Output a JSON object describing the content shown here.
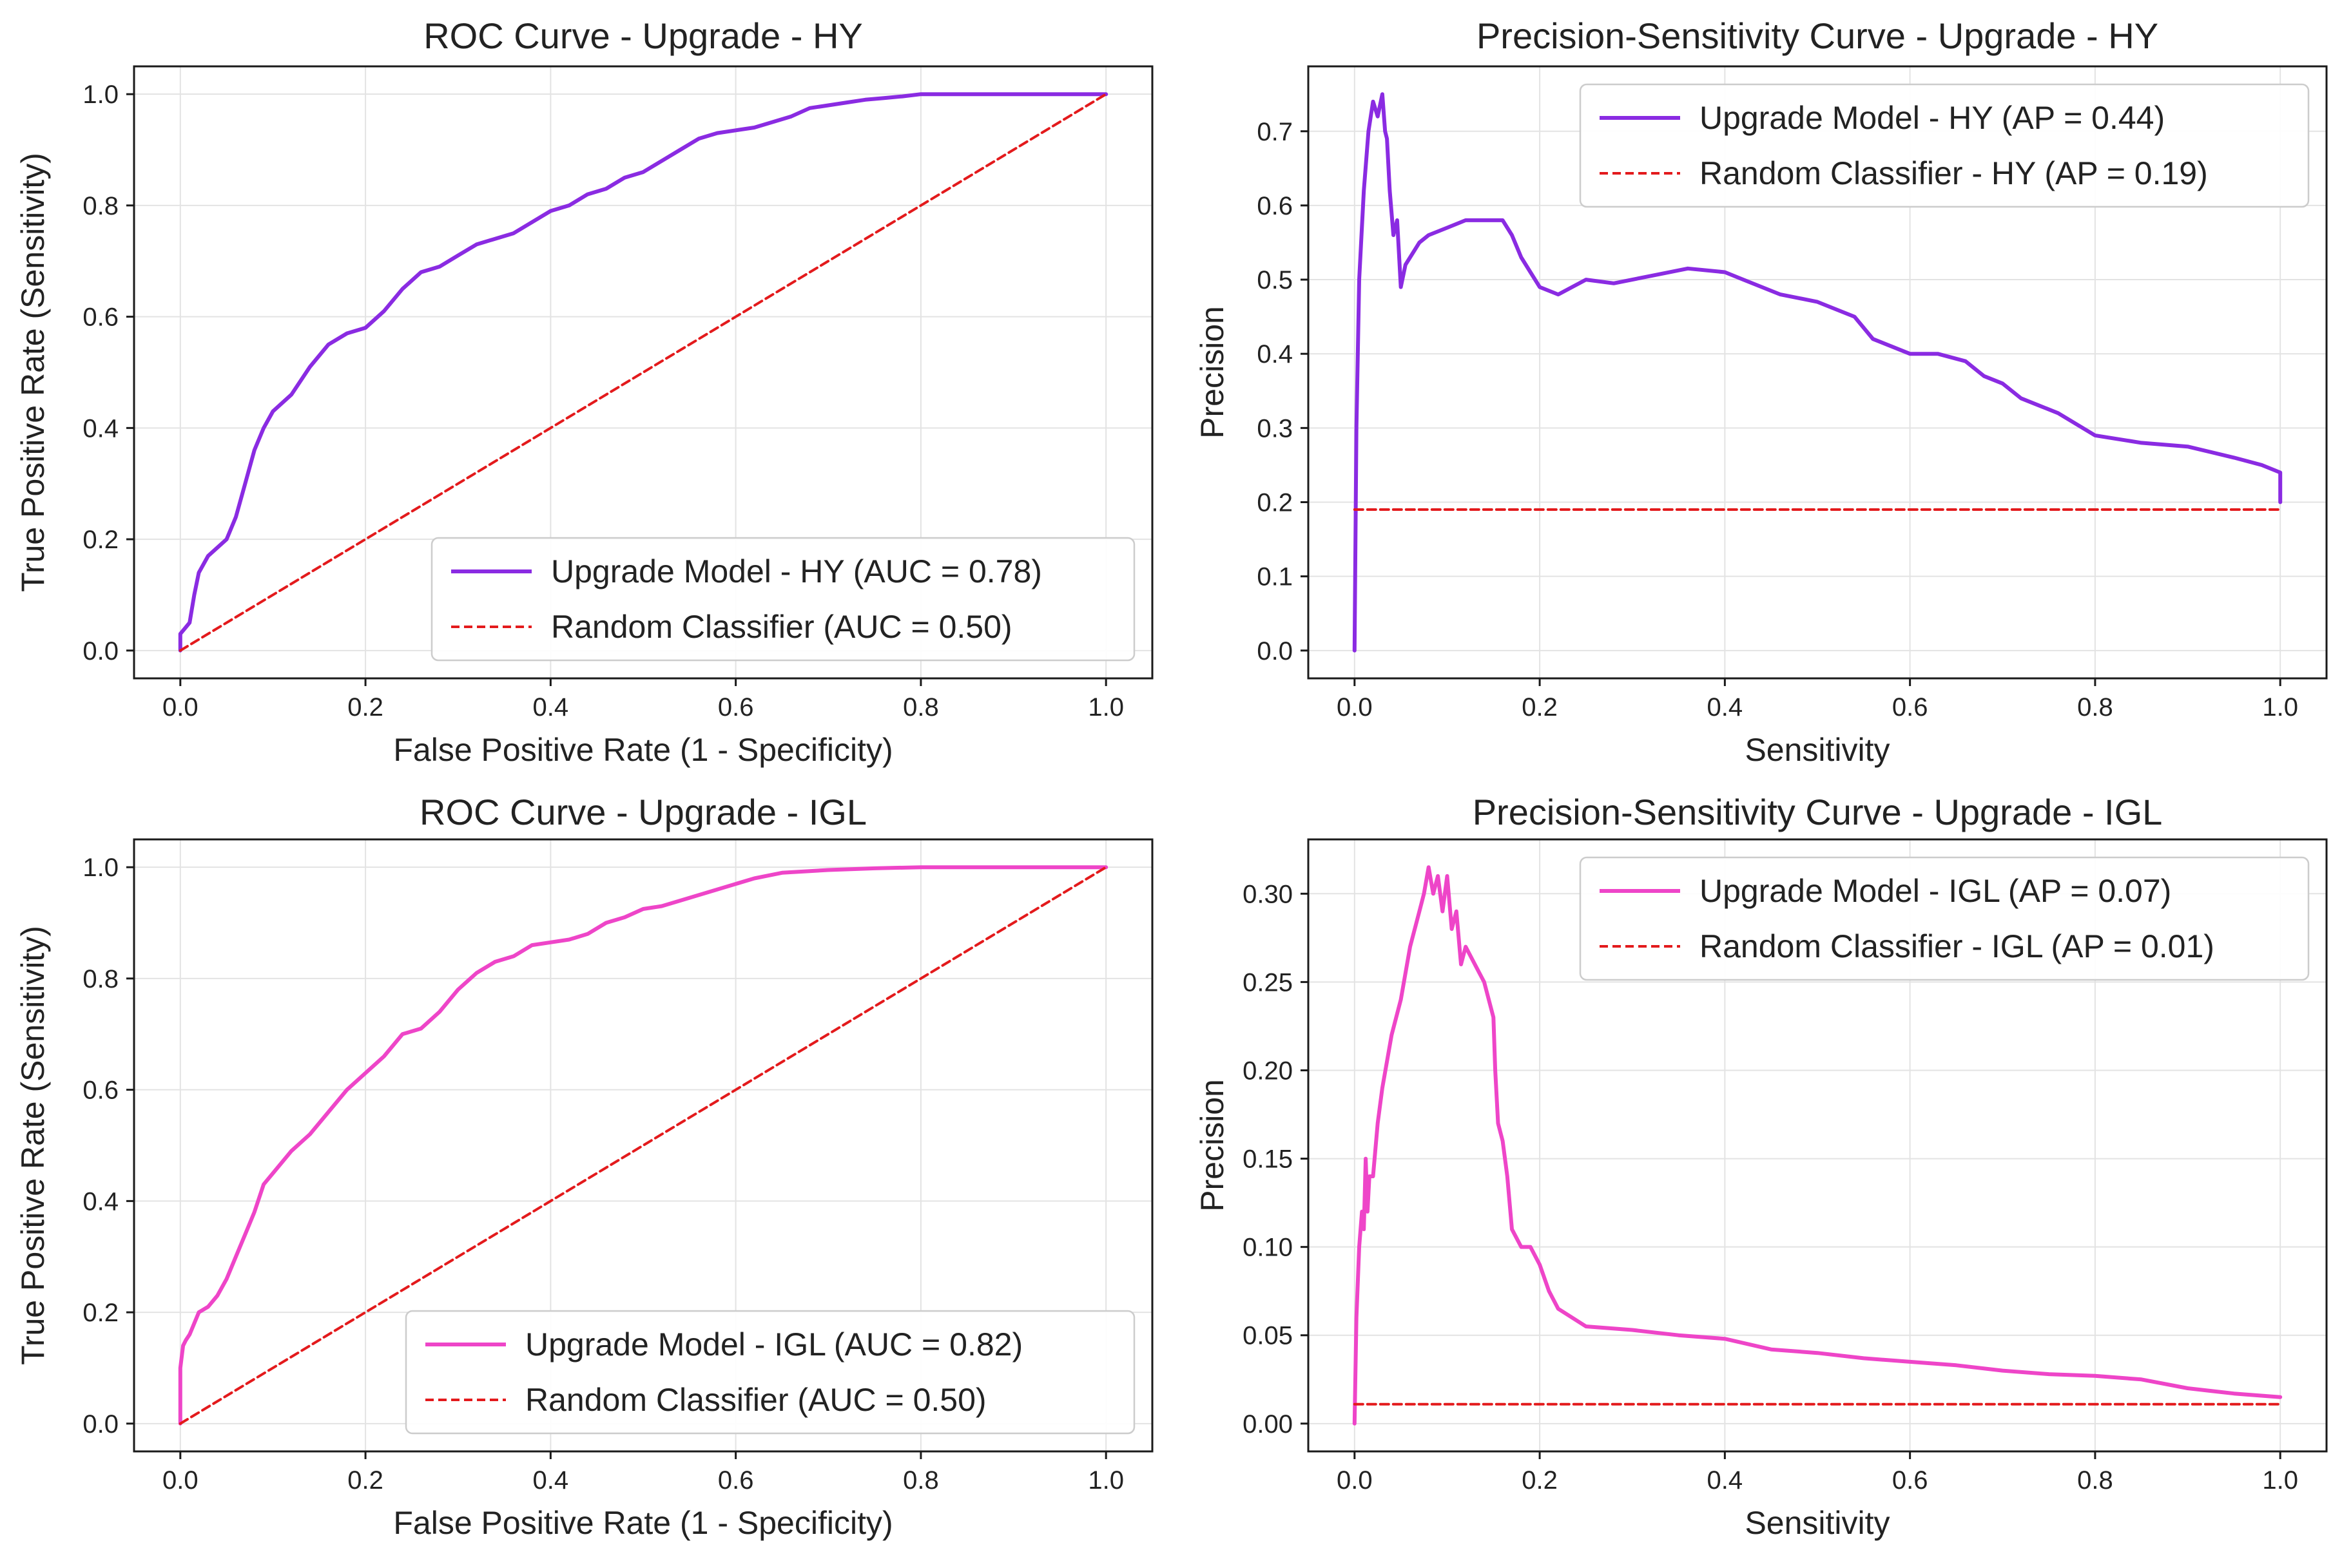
{
  "colors": {
    "hy": "#8a2be2",
    "igl": "#ee45c8",
    "random": "#e31a1c"
  },
  "chart_data": [
    {
      "type": "line",
      "title": "ROC Curve - Upgrade - HY",
      "xlabel": "False Positive Rate (1 - Specificity)",
      "ylabel": "True Positive Rate (Sensitivity)",
      "xlim": [
        -0.05,
        1.05
      ],
      "ylim": [
        -0.05,
        1.05
      ],
      "xticks": [
        "0.0",
        "0.2",
        "0.4",
        "0.6",
        "0.8",
        "1.0"
      ],
      "yticks": [
        "0.0",
        "0.2",
        "0.4",
        "0.6",
        "0.8",
        "1.0"
      ],
      "grid": true,
      "legend_position": "lower-right",
      "series": [
        {
          "name": "Upgrade Model - HY (AUC = 0.78)",
          "color_key": "hy",
          "style": "solid",
          "x": [
            0,
            0,
            0.005,
            0.01,
            0.015,
            0.02,
            0.03,
            0.05,
            0.06,
            0.07,
            0.08,
            0.09,
            0.1,
            0.12,
            0.14,
            0.16,
            0.18,
            0.2,
            0.22,
            0.24,
            0.26,
            0.28,
            0.3,
            0.32,
            0.34,
            0.36,
            0.38,
            0.4,
            0.42,
            0.44,
            0.46,
            0.48,
            0.5,
            0.52,
            0.54,
            0.56,
            0.58,
            0.6,
            0.62,
            0.64,
            0.66,
            0.68,
            0.7,
            0.72,
            0.74,
            0.76,
            0.78,
            0.8,
            0.85,
            0.9,
            0.95,
            1.0
          ],
          "y": [
            0,
            0.03,
            0.04,
            0.05,
            0.1,
            0.14,
            0.17,
            0.2,
            0.24,
            0.3,
            0.36,
            0.4,
            0.43,
            0.46,
            0.51,
            0.55,
            0.57,
            0.58,
            0.61,
            0.65,
            0.68,
            0.69,
            0.71,
            0.73,
            0.74,
            0.75,
            0.77,
            0.79,
            0.8,
            0.82,
            0.83,
            0.85,
            0.86,
            0.88,
            0.9,
            0.92,
            0.93,
            0.935,
            0.94,
            0.95,
            0.96,
            0.975,
            0.98,
            0.985,
            0.99,
            0.993,
            0.996,
            1.0,
            1.0,
            1.0,
            1.0,
            1.0
          ]
        },
        {
          "name": "Random Classifier (AUC = 0.50)",
          "color_key": "random",
          "style": "dashed",
          "x": [
            0,
            1
          ],
          "y": [
            0,
            1
          ]
        }
      ]
    },
    {
      "type": "line",
      "title": "Precision-Sensitivity Curve - Upgrade - HY",
      "xlabel": "Sensitivity",
      "ylabel": "Precision",
      "xlim": [
        -0.05,
        1.05
      ],
      "ylim": [
        -0.0375,
        0.7875
      ],
      "xticks": [
        "0.0",
        "0.2",
        "0.4",
        "0.6",
        "0.8",
        "1.0"
      ],
      "yticks": [
        "0.0",
        "0.1",
        "0.2",
        "0.3",
        "0.4",
        "0.5",
        "0.6",
        "0.7"
      ],
      "grid": true,
      "legend_position": "upper-right",
      "series": [
        {
          "name": "Upgrade Model - HY (AP = 0.44)",
          "color_key": "hy",
          "style": "solid",
          "x": [
            0,
            0.002,
            0.005,
            0.01,
            0.015,
            0.02,
            0.025,
            0.03,
            0.033,
            0.035,
            0.038,
            0.042,
            0.046,
            0.05,
            0.055,
            0.06,
            0.07,
            0.08,
            0.1,
            0.12,
            0.14,
            0.16,
            0.17,
            0.18,
            0.19,
            0.2,
            0.22,
            0.25,
            0.28,
            0.32,
            0.36,
            0.4,
            0.42,
            0.44,
            0.46,
            0.48,
            0.5,
            0.52,
            0.54,
            0.56,
            0.58,
            0.6,
            0.63,
            0.66,
            0.68,
            0.7,
            0.72,
            0.74,
            0.76,
            0.8,
            0.85,
            0.9,
            0.95,
            0.98,
            1.0,
            1.0
          ],
          "y": [
            0,
            0.3,
            0.5,
            0.62,
            0.7,
            0.74,
            0.72,
            0.75,
            0.7,
            0.69,
            0.62,
            0.56,
            0.58,
            0.49,
            0.52,
            0.53,
            0.55,
            0.56,
            0.57,
            0.58,
            0.58,
            0.58,
            0.56,
            0.53,
            0.51,
            0.49,
            0.48,
            0.5,
            0.495,
            0.505,
            0.515,
            0.51,
            0.5,
            0.49,
            0.48,
            0.475,
            0.47,
            0.46,
            0.45,
            0.42,
            0.41,
            0.4,
            0.4,
            0.39,
            0.37,
            0.36,
            0.34,
            0.33,
            0.32,
            0.29,
            0.28,
            0.275,
            0.26,
            0.25,
            0.24,
            0.2
          ]
        },
        {
          "name": "Random Classifier - HY (AP = 0.19)",
          "color_key": "random",
          "style": "dashed",
          "x": [
            0,
            1
          ],
          "y": [
            0.19,
            0.19
          ]
        }
      ]
    },
    {
      "type": "line",
      "title": "ROC Curve - Upgrade - IGL",
      "xlabel": "False Positive Rate (1 - Specificity)",
      "ylabel": "True Positive Rate (Sensitivity)",
      "xlim": [
        -0.05,
        1.05
      ],
      "ylim": [
        -0.05,
        1.05
      ],
      "xticks": [
        "0.0",
        "0.2",
        "0.4",
        "0.6",
        "0.8",
        "1.0"
      ],
      "yticks": [
        "0.0",
        "0.2",
        "0.4",
        "0.6",
        "0.8",
        "1.0"
      ],
      "grid": true,
      "legend_position": "lower-right",
      "series": [
        {
          "name": "Upgrade Model - IGL (AUC = 0.82)",
          "color_key": "igl",
          "style": "solid",
          "x": [
            0,
            0,
            0.003,
            0.006,
            0.01,
            0.02,
            0.03,
            0.04,
            0.05,
            0.06,
            0.07,
            0.08,
            0.09,
            0.1,
            0.12,
            0.14,
            0.16,
            0.18,
            0.2,
            0.22,
            0.24,
            0.26,
            0.28,
            0.3,
            0.32,
            0.34,
            0.36,
            0.38,
            0.4,
            0.42,
            0.44,
            0.46,
            0.48,
            0.5,
            0.52,
            0.54,
            0.56,
            0.58,
            0.6,
            0.62,
            0.65,
            0.7,
            0.75,
            0.8,
            0.9,
            1.0
          ],
          "y": [
            0,
            0.1,
            0.14,
            0.15,
            0.16,
            0.2,
            0.21,
            0.23,
            0.26,
            0.3,
            0.34,
            0.38,
            0.43,
            0.45,
            0.49,
            0.52,
            0.56,
            0.6,
            0.63,
            0.66,
            0.7,
            0.71,
            0.74,
            0.78,
            0.81,
            0.83,
            0.84,
            0.86,
            0.865,
            0.87,
            0.88,
            0.9,
            0.91,
            0.925,
            0.93,
            0.94,
            0.95,
            0.96,
            0.97,
            0.98,
            0.99,
            0.995,
            0.998,
            1.0,
            1.0,
            1.0
          ]
        },
        {
          "name": "Random Classifier (AUC = 0.50)",
          "color_key": "random",
          "style": "dashed",
          "x": [
            0,
            1
          ],
          "y": [
            0,
            1
          ]
        }
      ]
    },
    {
      "type": "line",
      "title": "Precision-Sensitivity Curve - Upgrade - IGL",
      "xlabel": "Sensitivity",
      "ylabel": "Precision",
      "xlim": [
        -0.05,
        1.05
      ],
      "ylim": [
        -0.01575,
        0.33075
      ],
      "xticks": [
        "0.0",
        "0.2",
        "0.4",
        "0.6",
        "0.8",
        "1.0"
      ],
      "yticks": [
        "0.00",
        "0.05",
        "0.10",
        "0.15",
        "0.20",
        "0.25",
        "0.30"
      ],
      "grid": true,
      "legend_position": "upper-right",
      "series": [
        {
          "name": "Upgrade Model - IGL (AP = 0.07)",
          "color_key": "igl",
          "style": "solid",
          "x": [
            0,
            0.002,
            0.005,
            0.008,
            0.01,
            0.012,
            0.014,
            0.016,
            0.02,
            0.025,
            0.03,
            0.04,
            0.05,
            0.06,
            0.07,
            0.075,
            0.08,
            0.085,
            0.09,
            0.095,
            0.1,
            0.105,
            0.11,
            0.115,
            0.12,
            0.13,
            0.14,
            0.15,
            0.152,
            0.155,
            0.16,
            0.165,
            0.17,
            0.18,
            0.19,
            0.2,
            0.21,
            0.22,
            0.25,
            0.3,
            0.35,
            0.4,
            0.45,
            0.5,
            0.55,
            0.6,
            0.65,
            0.7,
            0.75,
            0.8,
            0.85,
            0.9,
            0.95,
            1.0
          ],
          "y": [
            0,
            0.06,
            0.1,
            0.12,
            0.11,
            0.15,
            0.12,
            0.14,
            0.14,
            0.17,
            0.19,
            0.22,
            0.24,
            0.27,
            0.29,
            0.3,
            0.315,
            0.3,
            0.31,
            0.29,
            0.31,
            0.28,
            0.29,
            0.26,
            0.27,
            0.26,
            0.25,
            0.23,
            0.2,
            0.17,
            0.16,
            0.14,
            0.11,
            0.1,
            0.1,
            0.09,
            0.075,
            0.065,
            0.055,
            0.053,
            0.05,
            0.048,
            0.042,
            0.04,
            0.037,
            0.035,
            0.033,
            0.03,
            0.028,
            0.027,
            0.025,
            0.02,
            0.017,
            0.015
          ]
        },
        {
          "name": "Random Classifier - IGL (AP = 0.01)",
          "color_key": "random",
          "style": "dashed",
          "x": [
            0,
            1
          ],
          "y": [
            0.011,
            0.011
          ]
        }
      ]
    }
  ]
}
